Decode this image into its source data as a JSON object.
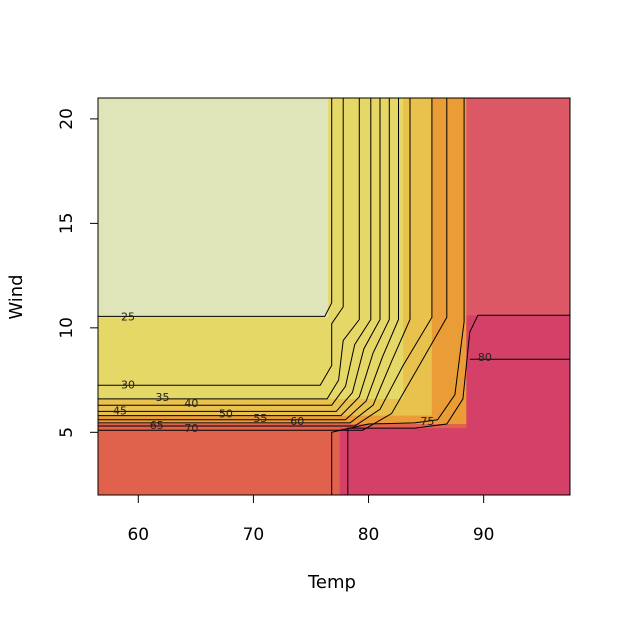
{
  "chart_data": {
    "type": "heatmap",
    "subtype": "filled-contour",
    "title": "",
    "xlabel": "Temp",
    "ylabel": "Wind",
    "xlim": [
      56.5,
      97.5
    ],
    "ylim": [
      2,
      21
    ],
    "xticks": [
      60,
      70,
      80,
      90
    ],
    "yticks": [
      5,
      10,
      15,
      20
    ],
    "grid": false,
    "colors": {
      "pale": "#e0e4b9",
      "yellow": "#e6d866",
      "gold": "#e9c24e",
      "orange": "#ea9c37",
      "orange_red": "#e97446",
      "coral": "#e0624d",
      "red": "#dc5865",
      "magenta": "#d44068"
    },
    "regions": [
      {
        "color": "coral",
        "x": [
          56.5,
          97.5
        ],
        "y": [
          2,
          21
        ]
      },
      {
        "color": "orange",
        "x": [
          56.5,
          88.5
        ],
        "y": [
          5.4,
          21
        ]
      },
      {
        "color": "gold",
        "x": [
          56.5,
          85.5
        ],
        "y": [
          5.8,
          21
        ]
      },
      {
        "color": "yellow",
        "x": [
          56.5,
          83
        ],
        "y": [
          6.6,
          21
        ]
      },
      {
        "color": "pale",
        "x": [
          56.5,
          76.5
        ],
        "y": [
          10.5,
          21
        ]
      },
      {
        "color": "red",
        "x": [
          88.5,
          97.5
        ],
        "y": [
          10.6,
          21
        ]
      },
      {
        "color": "magenta",
        "x": [
          77.5,
          97.5
        ],
        "y": [
          2,
          5.2
        ]
      },
      {
        "color": "magenta",
        "x": [
          88.5,
          97.5
        ],
        "y": [
          5.2,
          10.6
        ]
      }
    ],
    "contours": [
      {
        "level": 25,
        "label_at": [
          58.5,
          10.45
        ],
        "points": [
          [
            56.5,
            10.55
          ],
          [
            76.2,
            10.55
          ],
          [
            76.8,
            11.2
          ],
          [
            76.8,
            21
          ]
        ]
      },
      {
        "level": 30,
        "label_at": [
          58.5,
          7.2
        ],
        "points": [
          [
            56.5,
            7.25
          ],
          [
            75.8,
            7.25
          ],
          [
            76.8,
            8.2
          ],
          [
            76.8,
            10.2
          ],
          [
            77.8,
            11
          ],
          [
            77.8,
            21
          ]
        ]
      },
      {
        "level": 35,
        "label_at": [
          61.5,
          6.6
        ],
        "points": [
          [
            56.5,
            6.6
          ],
          [
            76.4,
            6.6
          ],
          [
            77.4,
            7.5
          ],
          [
            77.8,
            9.4
          ],
          [
            79.2,
            10.4
          ],
          [
            79.2,
            21
          ]
        ]
      },
      {
        "level": 40,
        "label_at": [
          64,
          6.3
        ],
        "points": [
          [
            56.5,
            6.3
          ],
          [
            76.8,
            6.3
          ],
          [
            78,
            7.2
          ],
          [
            78.8,
            9.2
          ],
          [
            80.2,
            10.4
          ],
          [
            80.2,
            21
          ]
        ]
      },
      {
        "level": 45,
        "label_at": [
          57.8,
          5.95
        ],
        "points": [
          [
            56.5,
            6
          ],
          [
            77.2,
            6
          ],
          [
            78.6,
            6.9
          ],
          [
            79.6,
            9
          ],
          [
            81,
            10.4
          ],
          [
            81,
            21
          ]
        ]
      },
      {
        "level": 50,
        "label_at": [
          67,
          5.8
        ],
        "points": [
          [
            56.5,
            5.8
          ],
          [
            77.6,
            5.8
          ],
          [
            79.2,
            6.7
          ],
          [
            80.4,
            8.8
          ],
          [
            81.8,
            10.4
          ],
          [
            81.8,
            21
          ]
        ]
      },
      {
        "level": 55,
        "label_at": [
          70,
          5.6
        ],
        "points": [
          [
            56.5,
            5.6
          ],
          [
            78,
            5.6
          ],
          [
            79.8,
            6.5
          ],
          [
            81.2,
            8.6
          ],
          [
            82.6,
            10.4
          ],
          [
            82.6,
            21
          ]
        ]
      },
      {
        "level": 60,
        "label_at": [
          73.2,
          5.45
        ],
        "points": [
          [
            56.5,
            5.45
          ],
          [
            78.4,
            5.45
          ],
          [
            80.4,
            6.3
          ],
          [
            82,
            8.4
          ],
          [
            83.6,
            10.4
          ],
          [
            83.6,
            21
          ]
        ]
      },
      {
        "level": 65,
        "label_at": [
          61,
          5.25
        ],
        "points": [
          [
            56.5,
            5.3
          ],
          [
            78.8,
            5.3
          ],
          [
            81,
            6.1
          ],
          [
            83,
            8.2
          ],
          [
            85.5,
            10.5
          ],
          [
            85.5,
            21
          ]
        ]
      },
      {
        "level": 70,
        "label_at": [
          64,
          5.1
        ],
        "points": [
          [
            56.5,
            5.1
          ],
          [
            79.5,
            5.1
          ],
          [
            82,
            5.9
          ],
          [
            84.2,
            8
          ],
          [
            86.8,
            10.5
          ],
          [
            86.8,
            21
          ]
        ]
      },
      {
        "level": 75,
        "label_at": [
          84.5,
          5.45
        ],
        "points": [
          [
            76.8,
            2
          ],
          [
            76.8,
            5
          ],
          [
            80,
            5.4
          ],
          [
            84,
            5.45
          ],
          [
            86,
            5.6
          ],
          [
            87.5,
            6.8
          ],
          [
            88.3,
            10.3
          ],
          [
            88.3,
            21
          ]
        ]
      },
      {
        "level": 80,
        "label_at": [
          89.5,
          8.5
        ],
        "points": [
          [
            78.2,
            2
          ],
          [
            78.2,
            5.2
          ],
          [
            84,
            5.2
          ],
          [
            86.8,
            5.4
          ],
          [
            88.2,
            6.6
          ],
          [
            88.8,
            9.8
          ],
          [
            89.5,
            10.6
          ],
          [
            97.5,
            10.6
          ]
        ]
      },
      {
        "level": 80,
        "label_at": null,
        "points": [
          [
            88.8,
            8.5
          ],
          [
            97.5,
            8.5
          ]
        ]
      }
    ]
  }
}
